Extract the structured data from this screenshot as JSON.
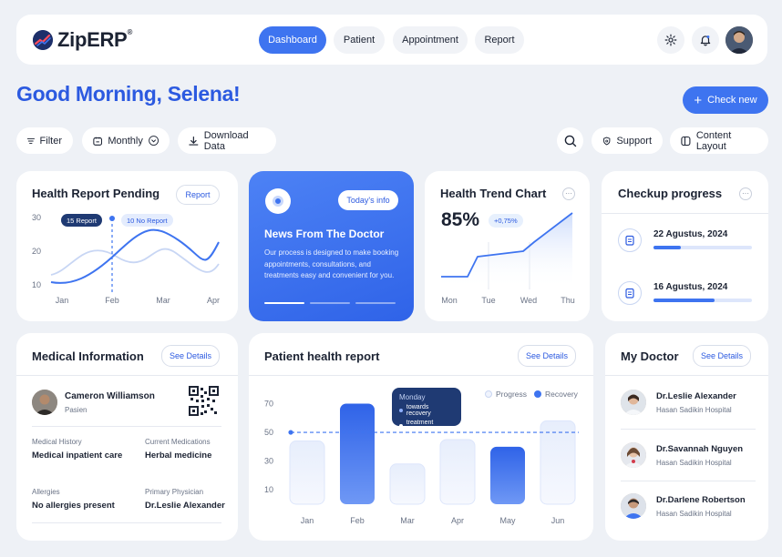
{
  "logo": {
    "name": "ZipERP",
    "mark": "®"
  },
  "nav": {
    "items": [
      "Dashboard",
      "Patient",
      "Appointment",
      "Report"
    ],
    "active": "Dashboard"
  },
  "greeting": "Good Morning, Selena!",
  "actions": {
    "check_new": "Check new"
  },
  "toolbar": {
    "filter": "Filter",
    "monthly": "Monthly",
    "download": "Download Data",
    "support": "Support",
    "content_layout": "Content Layout"
  },
  "health_report": {
    "title": "Health Report Pending",
    "button": "Report",
    "badge_a": "15 Report",
    "badge_b": "10 No Report",
    "y_ticks": [
      "30",
      "20",
      "10"
    ],
    "x_ticks": [
      "Jan",
      "Feb",
      "Mar",
      "Apr"
    ]
  },
  "news": {
    "badge": "Today's info",
    "title": "News From The Doctor",
    "body": "Our process is designed to make booking appointments, consultations, and treatments easy and convenient for you."
  },
  "trend": {
    "title": "Health Trend Chart",
    "value": "85%",
    "delta": "+0,75%",
    "x_ticks": [
      "Mon",
      "Tue",
      "Wed",
      "Thu"
    ]
  },
  "checkup": {
    "title": "Checkup progress",
    "items": [
      {
        "date": "22 Agustus, 2024",
        "progress": 0.28
      },
      {
        "date": "16 Agustus, 2024",
        "progress": 0.62
      }
    ]
  },
  "medical": {
    "title": "Medical Information",
    "button": "See Details",
    "patient_name": "Cameron Williamson",
    "patient_role": "Pasien",
    "history_label": "Medical History",
    "history_value": "Medical inpatient care",
    "meds_label": "Current Medications",
    "meds_value": "Herbal medicine",
    "allergies_label": "Allergies",
    "allergies_value": "No allergies present",
    "physician_label": "Primary Physician",
    "physician_value": "Dr.Leslie Alexander"
  },
  "patient_report": {
    "title": "Patient health report",
    "button": "See Details",
    "legend": [
      "Progress",
      "Recovery"
    ],
    "tooltip": {
      "title": "Monday",
      "line1": "towards recovery",
      "line2": "treatment process"
    }
  },
  "chart_data": {
    "type": "bar",
    "title": "Patient health report",
    "categories": [
      "Jan",
      "Feb",
      "Mar",
      "Apr",
      "May",
      "Jun"
    ],
    "series": [
      {
        "name": "Progress",
        "values": [
          44,
          70,
          28,
          45,
          null,
          58
        ]
      },
      {
        "name": "Recovery",
        "values": [
          null,
          70,
          null,
          null,
          40,
          null
        ]
      }
    ],
    "reference_line": 50,
    "y_ticks": [
      70,
      50,
      30,
      10
    ],
    "ylim": [
      0,
      76
    ],
    "xlabel": "",
    "ylabel": ""
  },
  "doctors": {
    "title": "My Doctor",
    "button": "See Details",
    "items": [
      {
        "name": "Dr.Leslie Alexander",
        "hospital": "Hasan Sadikin Hospital"
      },
      {
        "name": "Dr.Savannah Nguyen",
        "hospital": "Hasan Sadikin Hospital"
      },
      {
        "name": "Dr.Darlene Robertson",
        "hospital": "Hasan Sadikin Hospital"
      }
    ]
  },
  "colors": {
    "primary": "#3e74f0",
    "primary_dark": "#2c5ae0",
    "page": "#eef1f6",
    "tooltip": "#1f3a73"
  }
}
